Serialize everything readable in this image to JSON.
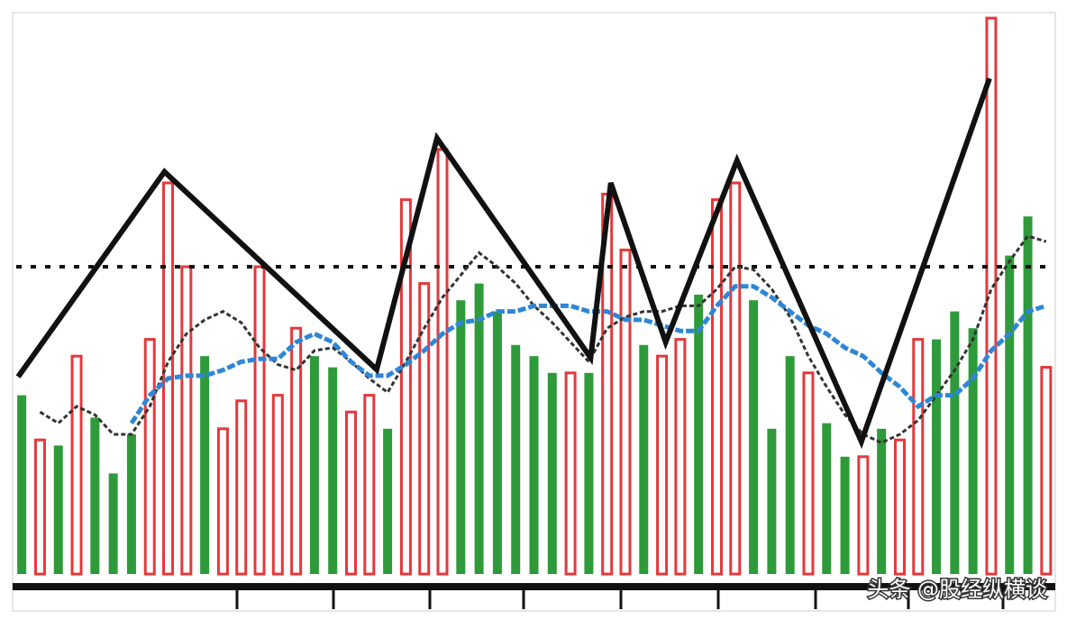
{
  "chart_data": {
    "type": "bar",
    "x": [
      1,
      2,
      3,
      4,
      5,
      6,
      7,
      8,
      9,
      10,
      11,
      12,
      13,
      14,
      15,
      16,
      17,
      18,
      19,
      20,
      21,
      22,
      23,
      24,
      25,
      26,
      27,
      28,
      29,
      30,
      31,
      32,
      33,
      34,
      35,
      36,
      37,
      38,
      39,
      40,
      41,
      42,
      43,
      44,
      45,
      46,
      47,
      48,
      49,
      50,
      51,
      52,
      53,
      54,
      55,
      56,
      57
    ],
    "xlim": [
      0.5,
      57.5
    ],
    "ylim": [
      0,
      100
    ],
    "series": [
      {
        "color": "#e5383b",
        "hollow": true,
        "values": [
          null,
          24,
          null,
          39,
          null,
          null,
          null,
          42,
          70,
          55,
          null,
          26,
          31,
          55,
          32,
          44,
          null,
          null,
          29,
          32,
          null,
          67,
          52,
          76,
          null,
          null,
          null,
          null,
          null,
          null,
          36,
          null,
          68,
          58,
          null,
          39,
          42,
          null,
          67,
          70,
          null,
          null,
          null,
          36,
          null,
          null,
          21,
          null,
          24,
          42,
          null,
          null,
          null,
          99.5,
          null,
          null,
          37
        ]
      },
      {
        "color": "#2e9a3a",
        "values": [
          32,
          null,
          23,
          null,
          28,
          18,
          25,
          null,
          null,
          null,
          39,
          null,
          null,
          null,
          null,
          null,
          39,
          37,
          null,
          null,
          26,
          null,
          null,
          null,
          49,
          52,
          47,
          41,
          39,
          36,
          null,
          36,
          null,
          null,
          41,
          null,
          null,
          50,
          null,
          null,
          49,
          26,
          39,
          null,
          27,
          21,
          null,
          26,
          null,
          null,
          42,
          47,
          44,
          null,
          57,
          64,
          null
        ]
      }
    ],
    "lines": [
      {
        "type": "line",
        "color": "#333333",
        "width": 3,
        "dash": "5 3",
        "x": [
          1,
          2,
          3,
          4,
          5,
          6,
          7,
          8,
          9,
          10,
          11,
          12,
          13,
          14,
          15,
          16,
          17,
          18,
          19,
          20,
          21,
          22,
          23,
          24,
          25,
          26,
          27,
          28,
          29,
          30,
          31,
          32,
          33,
          34,
          35,
          36,
          37,
          38,
          39,
          40,
          41,
          42,
          43,
          44,
          45,
          46,
          47,
          48,
          49,
          50,
          51,
          52,
          53,
          54,
          55,
          56,
          57
        ],
        "values": [
          null,
          29,
          27,
          30,
          28.5,
          25,
          25,
          30,
          38,
          43,
          45.5,
          47,
          45,
          40.5,
          37.5,
          36.5,
          40,
          40.5,
          38,
          35,
          32.5,
          38,
          44,
          49.5,
          53.5,
          57.5,
          55,
          52,
          48,
          45,
          41.5,
          38,
          44,
          46,
          47,
          47,
          48,
          48,
          51,
          55,
          54.5,
          51,
          46,
          39,
          33.5,
          28.5,
          25,
          23.5,
          25,
          27.5,
          32,
          36.5,
          42,
          51,
          56,
          60.5,
          59.5
        ]
      },
      {
        "type": "line",
        "color": "#2f86d6",
        "width": 5,
        "dash": "9 3",
        "x": [
          1,
          2,
          3,
          4,
          5,
          6,
          7,
          8,
          9,
          10,
          11,
          12,
          13,
          14,
          15,
          16,
          17,
          18,
          19,
          20,
          21,
          22,
          23,
          24,
          25,
          26,
          27,
          28,
          29,
          30,
          31,
          32,
          33,
          34,
          35,
          36,
          37,
          38,
          39,
          40,
          41,
          42,
          43,
          44,
          45,
          46,
          47,
          48,
          49,
          50,
          51,
          52,
          53,
          54,
          55,
          56,
          57
        ],
        "values": [
          null,
          null,
          null,
          null,
          null,
          null,
          27,
          32,
          35,
          35.5,
          35.5,
          36.5,
          38,
          38.5,
          38.5,
          41.5,
          43,
          41.5,
          38,
          35.5,
          35.5,
          37.5,
          40,
          43,
          45,
          45.5,
          47,
          47,
          48,
          48,
          48,
          47,
          47,
          45.5,
          45.5,
          44.5,
          43.5,
          43.5,
          48,
          51.5,
          51.5,
          49.5,
          47,
          44.5,
          43,
          40.5,
          39,
          36,
          33.5,
          30,
          32,
          32,
          35,
          40,
          43,
          47,
          48
        ]
      },
      {
        "type": "line",
        "color": "#111111",
        "width": 6,
        "x": [
          0.8,
          8.8,
          20.4,
          23.7,
          32.1,
          33.2,
          36.2,
          40.1,
          46.9,
          53.9
        ],
        "values": [
          35.3,
          72,
          36.6,
          78,
          38.7,
          70,
          41.5,
          74,
          23.7,
          88.7
        ]
      }
    ],
    "reference_line": {
      "value": 55,
      "color": "#111111",
      "style": "dotted"
    },
    "watermark": "头条 @股经纵横谈"
  }
}
